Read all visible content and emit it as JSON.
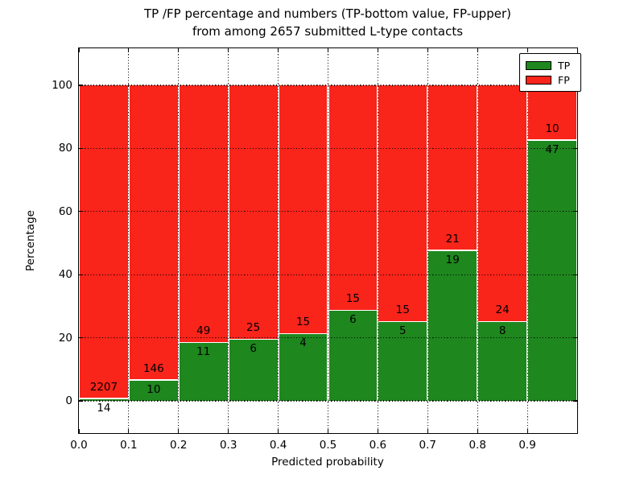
{
  "title": {
    "line1": "TP /FP percentage and numbers (TP-bottom value, FP-upper)",
    "line2": "from among 2657 submitted L-type contacts"
  },
  "colors": {
    "tp_green": "#1e871e",
    "fp_red": "#f9241a",
    "grid": "#000000",
    "background": "#ffffff"
  },
  "chart_data": {
    "type": "bar",
    "stacked": true,
    "normalized_to_percent": true,
    "title": "TP /FP percentage and numbers (TP-bottom value, FP-upper) from among 2657 submitted L-type contacts",
    "xlabel": "Predicted probability",
    "ylabel": "Percentage",
    "total_contacts": 2657,
    "xlim": [
      0.0,
      1.0
    ],
    "ylim": [
      -10,
      110
    ],
    "x_tick_labels": [
      "0.0",
      "0.1",
      "0.2",
      "0.3",
      "0.4",
      "0.5",
      "0.6",
      "0.7",
      "0.8",
      "0.9"
    ],
    "y_ticks": [
      0,
      20,
      40,
      60,
      80,
      100
    ],
    "y_tick_labels": [
      "0",
      "20",
      "40",
      "60",
      "80",
      "100"
    ],
    "grid": "dotted-both-axes",
    "legend": {
      "position": "upper-right",
      "entries": [
        {
          "label": "TP",
          "color": "#1e871e"
        },
        {
          "label": "FP",
          "color": "#f9241a"
        }
      ]
    },
    "bins": [
      {
        "range": "0.0-0.1",
        "tp": 14,
        "fp": 2207,
        "tp_pct": 0.63,
        "fp_pct": 99.37
      },
      {
        "range": "0.1-0.2",
        "tp": 10,
        "fp": 146,
        "tp_pct": 6.41,
        "fp_pct": 93.59
      },
      {
        "range": "0.2-0.3",
        "tp": 11,
        "fp": 49,
        "tp_pct": 18.33,
        "fp_pct": 81.67
      },
      {
        "range": "0.3-0.4",
        "tp": 6,
        "fp": 25,
        "tp_pct": 19.35,
        "fp_pct": 80.65
      },
      {
        "range": "0.4-0.5",
        "tp": 4,
        "fp": 15,
        "tp_pct": 21.05,
        "fp_pct": 78.95
      },
      {
        "range": "0.5-0.6",
        "tp": 6,
        "fp": 15,
        "tp_pct": 28.57,
        "fp_pct": 71.43
      },
      {
        "range": "0.6-0.7",
        "tp": 5,
        "fp": 15,
        "tp_pct": 25.0,
        "fp_pct": 75.0
      },
      {
        "range": "0.7-0.8",
        "tp": 19,
        "fp": 21,
        "tp_pct": 47.5,
        "fp_pct": 52.5
      },
      {
        "range": "0.8-0.9",
        "tp": 8,
        "fp": 24,
        "tp_pct": 25.0,
        "fp_pct": 75.0
      },
      {
        "range": "0.9-1.0",
        "tp": 47,
        "fp": 10,
        "tp_pct": 82.46,
        "fp_pct": 17.54
      }
    ]
  }
}
